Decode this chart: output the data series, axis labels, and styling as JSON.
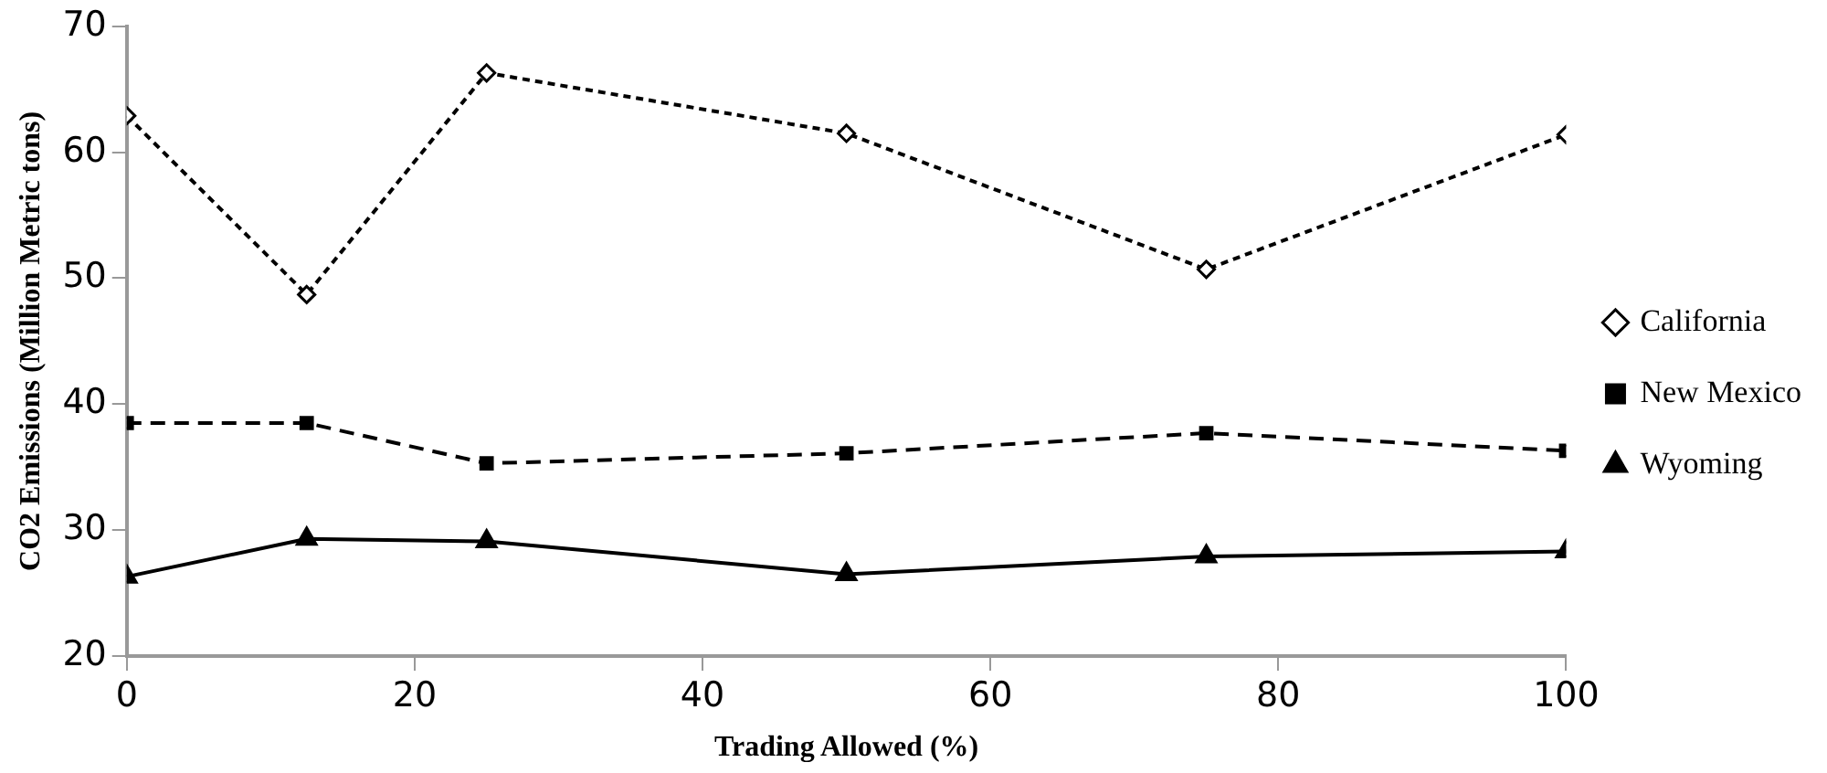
{
  "chart_data": {
    "type": "line",
    "xlabel": "Trading Allowed (%)",
    "ylabel": "CO2 Emissions (Million Metric tons)",
    "x": [
      0,
      12.5,
      25,
      50,
      75,
      100
    ],
    "series": [
      {
        "name": "California",
        "color": "#000000",
        "marker": "diamond",
        "line_style": "dotted",
        "values": [
          62.9,
          48.7,
          66.3,
          61.5,
          50.7,
          61.4
        ]
      },
      {
        "name": "New Mexico",
        "color": "#000000",
        "marker": "square",
        "line_style": "dashed",
        "values": [
          38.5,
          38.5,
          35.3,
          36.1,
          37.7,
          36.3
        ]
      },
      {
        "name": "Wyoming",
        "color": "#000000",
        "marker": "triangle",
        "line_style": "solid",
        "values": [
          26.3,
          29.3,
          29.1,
          26.5,
          27.9,
          28.3
        ]
      }
    ],
    "xlim": [
      0,
      100
    ],
    "xticks": [
      0,
      20,
      40,
      60,
      80,
      100
    ],
    "ylim": [
      20,
      70
    ],
    "yticks": [
      20,
      30,
      40,
      50,
      60,
      70
    ],
    "grid": false,
    "legend": "right"
  }
}
